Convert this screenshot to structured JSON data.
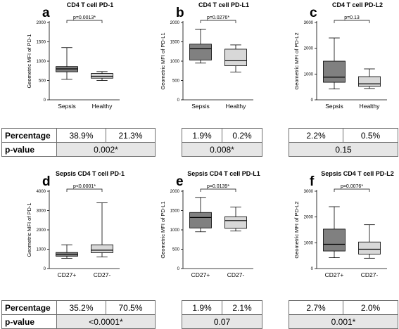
{
  "chart_data": [
    {
      "type": "box",
      "letter": "a",
      "title": "CD4 T cell PD-1",
      "ylabel": "Geometric MFI of PD-1",
      "ylim": [
        0,
        2000
      ],
      "yticks": [
        0,
        500,
        1000,
        1500,
        2000
      ],
      "categories": [
        "Sepsis",
        "Healthy"
      ],
      "colors": [
        "#808080",
        "#d8d8d8"
      ],
      "boxes": [
        {
          "min": 530,
          "q1": 725,
          "median": 800,
          "q3": 860,
          "max": 1350
        },
        {
          "min": 500,
          "q1": 560,
          "median": 610,
          "q3": 680,
          "max": 730
        }
      ],
      "pvalue": "p=0.0013*"
    },
    {
      "type": "box",
      "letter": "b",
      "title": "CD4 T cell PD-L1",
      "ylabel": "Geometric MFI of PD-L1",
      "ylim": [
        0,
        2000
      ],
      "yticks": [
        0,
        500,
        1000,
        1500,
        2000
      ],
      "categories": [
        "Sepsis",
        "Healthy"
      ],
      "colors": [
        "#808080",
        "#d8d8d8"
      ],
      "boxes": [
        {
          "min": 950,
          "q1": 1030,
          "median": 1320,
          "q3": 1440,
          "max": 1830
        },
        {
          "min": 720,
          "q1": 880,
          "median": 1010,
          "q3": 1310,
          "max": 1420
        }
      ],
      "pvalue": "p=0.0276*"
    },
    {
      "type": "box",
      "letter": "c",
      "title": "CD4 T cell PD-L2",
      "ylabel": "Geometric MFI of PD-L2",
      "ylim": [
        0,
        3000
      ],
      "yticks": [
        0,
        1000,
        2000,
        3000
      ],
      "categories": [
        "Sepsis",
        "Healthy"
      ],
      "colors": [
        "#808080",
        "#d8d8d8"
      ],
      "boxes": [
        {
          "min": 420,
          "q1": 680,
          "median": 880,
          "q3": 1500,
          "max": 2400
        },
        {
          "min": 440,
          "q1": 520,
          "median": 620,
          "q3": 900,
          "max": 1200
        }
      ],
      "pvalue": "p=0.13"
    },
    {
      "type": "box",
      "letter": "d",
      "title": "Sepsis CD4 T cell PD-1",
      "ylabel": "Geometric MFI of PD-1",
      "ylim": [
        0,
        4000
      ],
      "yticks": [
        0,
        1000,
        2000,
        3000,
        4000
      ],
      "categories": [
        "CD27+",
        "CD27-"
      ],
      "colors": [
        "#808080",
        "#d8d8d8"
      ],
      "boxes": [
        {
          "min": 530,
          "q1": 640,
          "median": 730,
          "q3": 830,
          "max": 1230
        },
        {
          "min": 600,
          "q1": 820,
          "median": 950,
          "q3": 1230,
          "max": 3400
        }
      ],
      "pvalue": "p<0.0001*"
    },
    {
      "type": "box",
      "letter": "e",
      "title": "Sepsis CD4 T cell PD-L1",
      "ylabel": "Geometric MFI of PD-L1",
      "ylim": [
        0,
        2000
      ],
      "yticks": [
        0,
        500,
        1000,
        1500,
        2000
      ],
      "categories": [
        "CD27+",
        "CD27-"
      ],
      "colors": [
        "#808080",
        "#d8d8d8"
      ],
      "boxes": [
        {
          "min": 950,
          "q1": 1050,
          "median": 1320,
          "q3": 1450,
          "max": 1840
        },
        {
          "min": 970,
          "q1": 1040,
          "median": 1240,
          "q3": 1340,
          "max": 1590
        }
      ],
      "pvalue": "p=0.0139*"
    },
    {
      "type": "box",
      "letter": "f",
      "title": "Sepsis CD4 T cell PD-L2",
      "ylabel": "Geometric MFI of PD-L2",
      "ylim": [
        0,
        3000
      ],
      "yticks": [
        0,
        1000,
        2000,
        3000
      ],
      "categories": [
        "CD27+",
        "CD27-"
      ],
      "colors": [
        "#808080",
        "#d8d8d8"
      ],
      "boxes": [
        {
          "min": 420,
          "q1": 680,
          "median": 940,
          "q3": 1530,
          "max": 2400
        },
        {
          "min": 400,
          "q1": 560,
          "median": 750,
          "q3": 1030,
          "max": 1700
        }
      ],
      "pvalue": "p=0.0076*"
    }
  ],
  "tables": [
    {
      "percentage_label": "Percentage",
      "pvalue_label": "p-value",
      "groups": [
        {
          "percentages": [
            "38.9%",
            "21.3%"
          ],
          "pvalue": "0.002*"
        },
        {
          "percentages": [
            "1.9%",
            "0.2%"
          ],
          "pvalue": "0.008*"
        },
        {
          "percentages": [
            "2.2%",
            "0.5%"
          ],
          "pvalue": "0.15"
        }
      ]
    },
    {
      "percentage_label": "Percentage",
      "pvalue_label": "p-value",
      "groups": [
        {
          "percentages": [
            "35.2%",
            "70.5%"
          ],
          "pvalue": "<0.0001*"
        },
        {
          "percentages": [
            "1.9%",
            "2.1%"
          ],
          "pvalue": "0.07"
        },
        {
          "percentages": [
            "2.7%",
            "2.0%"
          ],
          "pvalue": "0.001*"
        }
      ]
    }
  ]
}
